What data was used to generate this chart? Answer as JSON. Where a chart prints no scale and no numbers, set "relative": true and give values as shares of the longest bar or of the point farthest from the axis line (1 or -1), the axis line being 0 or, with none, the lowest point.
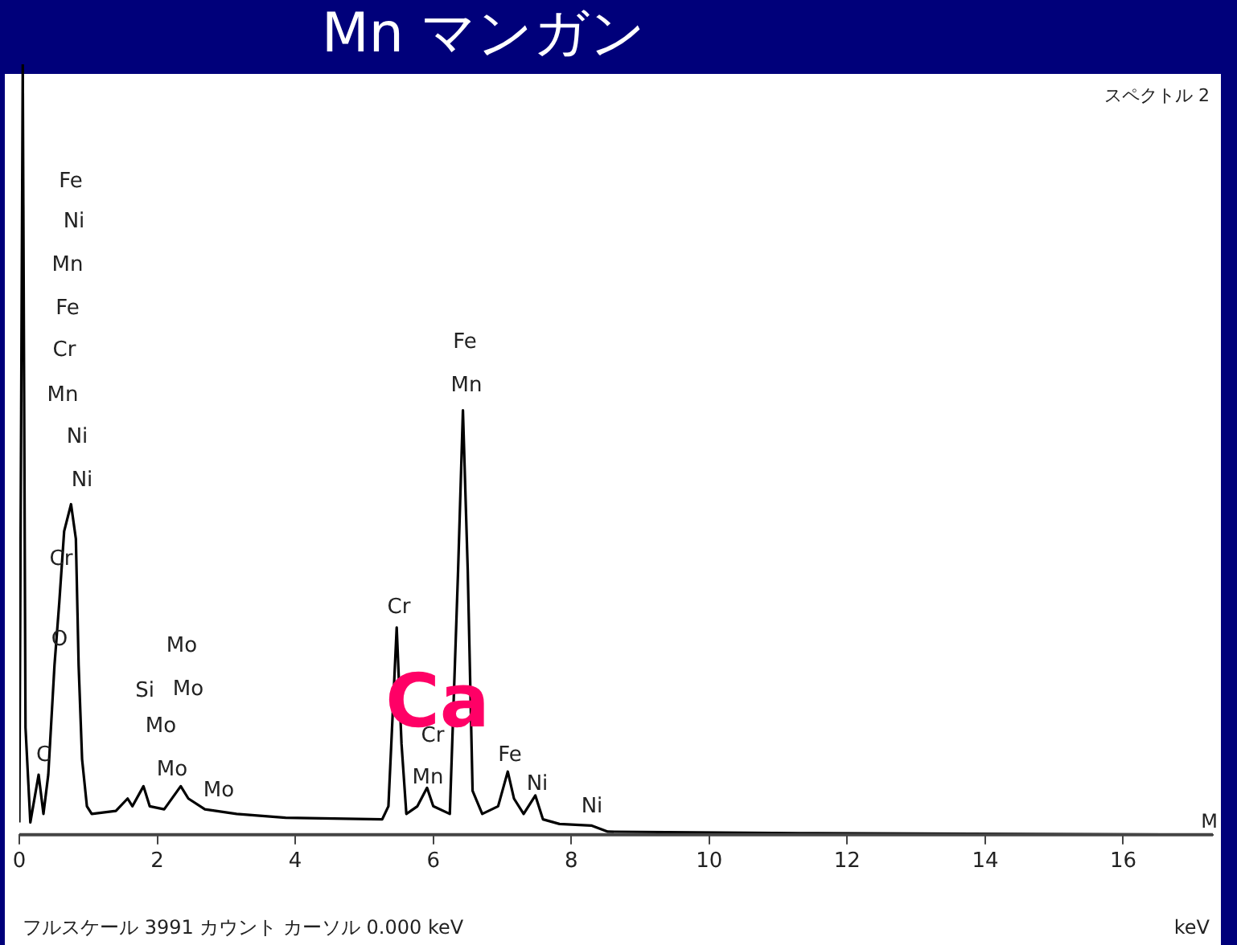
{
  "chart_data": {
    "type": "line",
    "title": "Mn マンガン",
    "xlabel": "keV",
    "relative": true,
    "xlim": [
      0,
      17.3
    ],
    "xticks": [
      0,
      2,
      4,
      6,
      8,
      10,
      12,
      14,
      16
    ],
    "series": [
      {
        "color": "#000000",
        "x": [
          0,
          0.05,
          0.09,
          0.16,
          0.28,
          0.35,
          0.42,
          0.51,
          0.58,
          0.65,
          0.75,
          0.82,
          0.86,
          0.91,
          0.98,
          1.05,
          1.4,
          1.57,
          1.64,
          1.8,
          1.89,
          2.1,
          2.34,
          2.45,
          2.69,
          3.15,
          3.86,
          5.26,
          5.35,
          5.47,
          5.54,
          5.61,
          5.77,
          5.91,
          6.0,
          6.24,
          6.36,
          6.43,
          6.5,
          6.57,
          6.71,
          6.94,
          7.08,
          7.17,
          7.31,
          7.48,
          7.59,
          7.83,
          8.29,
          8.53,
          11.33,
          17.27
        ],
        "values": [
          0.016,
          1,
          0.139,
          0.016,
          0.078,
          0.027,
          0.078,
          0.22,
          0.302,
          0.394,
          0.429,
          0.384,
          0.22,
          0.098,
          0.037,
          0.027,
          0.031,
          0.047,
          0.037,
          0.063,
          0.037,
          0.033,
          0.063,
          0.047,
          0.033,
          0.027,
          0.022,
          0.02,
          0.037,
          0.269,
          0.118,
          0.027,
          0.037,
          0.061,
          0.037,
          0.027,
          0.343,
          0.551,
          0.343,
          0.057,
          0.027,
          0.037,
          0.082,
          0.047,
          0.027,
          0.051,
          0.02,
          0.014,
          0.012,
          0.004,
          0.002,
          0
        ]
      }
    ],
    "annotations": [
      "スペクトル 2",
      "フルスケール 3991 カウント カーソル 0.000 keV",
      "M",
      "Ca",
      "Fe",
      "Ni",
      "Mn",
      "Fe",
      "Cr",
      "Mn",
      "Ni",
      "Ni",
      "Cr",
      "O",
      "C",
      "Si",
      "Mo",
      "Mo",
      "Mo",
      "Mo",
      "Mo",
      "Cr",
      "Cr",
      "Mn",
      "Fe",
      "Mn",
      "Fe",
      "Ni",
      "Ni"
    ]
  }
}
